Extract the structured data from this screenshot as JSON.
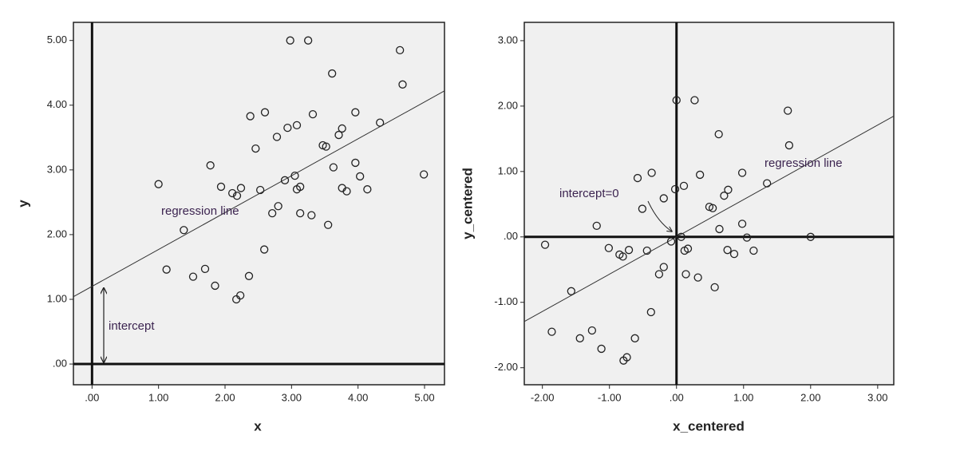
{
  "chart_data": [
    {
      "type": "scatter",
      "x_label": "x",
      "y_label": "y",
      "color": "#222222",
      "zero_lines": true,
      "xlim": [
        -0.28,
        5.3
      ],
      "ylim": [
        -0.32,
        5.28
      ],
      "xticks": [
        {
          "value": 0,
          "label": ".00"
        },
        {
          "value": 1,
          "label": "1.00"
        },
        {
          "value": 2,
          "label": "2.00"
        },
        {
          "value": 3,
          "label": "3.00"
        },
        {
          "value": 4,
          "label": "4.00"
        },
        {
          "value": 5,
          "label": "5.00"
        }
      ],
      "yticks": [
        {
          "value": 0,
          "label": ".00"
        },
        {
          "value": 1,
          "label": "1.00"
        },
        {
          "value": 2,
          "label": "2.00"
        },
        {
          "value": 3,
          "label": "3.00"
        },
        {
          "value": 4,
          "label": "4.00"
        },
        {
          "value": 5,
          "label": "5.00"
        }
      ],
      "x": [
        1.0,
        1.12,
        1.38,
        1.52,
        1.7,
        1.78,
        1.85,
        1.94,
        2.11,
        2.18,
        2.17,
        2.23,
        2.24,
        2.36,
        2.38,
        2.46,
        2.53,
        2.59,
        2.6,
        2.71,
        2.78,
        2.8,
        2.9,
        2.94,
        2.98,
        3.05,
        3.08,
        3.08,
        3.13,
        3.13,
        3.25,
        3.3,
        3.32,
        3.47,
        3.52,
        3.55,
        3.61,
        3.63,
        3.71,
        3.76,
        3.76,
        3.83,
        3.96,
        3.96,
        4.03,
        4.14,
        4.33,
        4.63,
        4.67,
        4.99
      ],
      "y": [
        2.78,
        1.46,
        2.07,
        1.35,
        1.47,
        3.07,
        1.21,
        2.74,
        2.64,
        2.6,
        1.0,
        1.06,
        2.72,
        1.36,
        3.83,
        3.33,
        2.69,
        1.77,
        3.89,
        2.33,
        3.51,
        2.44,
        2.84,
        3.65,
        5.0,
        2.91,
        3.69,
        2.7,
        2.74,
        2.33,
        5.0,
        2.3,
        3.86,
        3.38,
        3.36,
        2.15,
        4.49,
        3.04,
        3.54,
        3.64,
        2.72,
        2.67,
        3.89,
        3.11,
        2.9,
        2.7,
        3.73,
        4.85,
        4.32,
        2.93
      ],
      "regression": {
        "intercept": 1.2,
        "slope": 0.57
      },
      "annotations": [
        "regression line",
        "intercept"
      ]
    },
    {
      "type": "scatter",
      "x_label": "x_centered",
      "y_label": "y_centered",
      "color": "#222222",
      "zero_lines": true,
      "xlim": [
        -2.27,
        3.24
      ],
      "ylim": [
        -2.26,
        3.28
      ],
      "xticks": [
        {
          "value": -2,
          "label": "-2.00"
        },
        {
          "value": -1,
          "label": "-1.00"
        },
        {
          "value": 0,
          "label": ".00"
        },
        {
          "value": 1,
          "label": "1.00"
        },
        {
          "value": 2,
          "label": "2.00"
        },
        {
          "value": 3,
          "label": "3.00"
        }
      ],
      "yticks": [
        {
          "value": -2,
          "label": "-2.00"
        },
        {
          "value": -1,
          "label": "-1.00"
        },
        {
          "value": 0,
          "label": ".00"
        },
        {
          "value": 1,
          "label": "1.00"
        },
        {
          "value": 2,
          "label": "2.00"
        },
        {
          "value": 3,
          "label": "3.00"
        }
      ],
      "x": [
        -1.96,
        -1.86,
        -1.57,
        -1.44,
        -1.26,
        -1.19,
        -1.12,
        -1.01,
        -0.85,
        -0.8,
        -0.79,
        -0.74,
        -0.71,
        -0.62,
        -0.58,
        -0.51,
        -0.44,
        -0.38,
        -0.37,
        -0.26,
        -0.19,
        -0.19,
        -0.08,
        -0.02,
        0.0,
        0.07,
        0.11,
        0.12,
        0.17,
        0.14,
        0.27,
        0.32,
        0.35,
        0.49,
        0.54,
        0.57,
        0.63,
        0.64,
        0.71,
        0.77,
        0.76,
        0.86,
        0.98,
        0.98,
        1.05,
        1.15,
        1.35,
        1.66,
        1.68,
        2.0
      ],
      "y": [
        -0.12,
        -1.45,
        -0.83,
        -1.55,
        -1.43,
        0.17,
        -1.71,
        -0.17,
        -0.27,
        -0.3,
        -1.89,
        -1.84,
        -0.2,
        -1.55,
        0.9,
        0.43,
        -0.21,
        -1.15,
        0.98,
        -0.57,
        0.59,
        -0.46,
        -0.07,
        0.73,
        2.09,
        0.0,
        0.78,
        -0.21,
        -0.18,
        -0.57,
        2.09,
        -0.62,
        0.95,
        0.46,
        0.44,
        -0.77,
        1.57,
        0.12,
        0.63,
        0.72,
        -0.2,
        -0.26,
        0.98,
        0.2,
        -0.01,
        -0.21,
        0.82,
        1.93,
        1.4,
        0.0
      ],
      "regression": {
        "intercept": 0,
        "slope": 0.57
      },
      "annotations": [
        "regression line",
        "intercept=0"
      ]
    }
  ]
}
